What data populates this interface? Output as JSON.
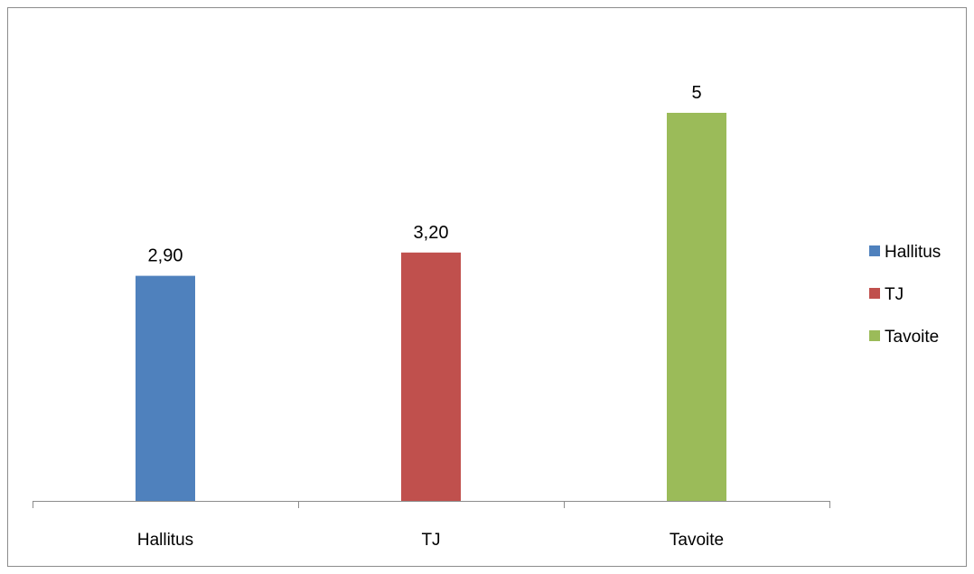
{
  "chart_data": {
    "type": "bar",
    "categories": [
      "Hallitus",
      "TJ",
      "Tavoite"
    ],
    "series": [
      {
        "name": "Hallitus",
        "values": [
          2.9,
          null,
          null
        ],
        "labels": [
          "2,90",
          "",
          ""
        ]
      },
      {
        "name": "TJ",
        "values": [
          null,
          3.2,
          null
        ],
        "labels": [
          "",
          "3,20",
          ""
        ]
      },
      {
        "name": "Tavoite",
        "values": [
          null,
          null,
          5
        ],
        "labels": [
          "",
          "",
          "5"
        ]
      }
    ],
    "title": "",
    "xlabel": "",
    "ylabel": "",
    "ylim": [
      0,
      6
    ],
    "grid": false,
    "legend_position": "right",
    "colors": [
      "#4F81BD",
      "#C0504D",
      "#9BBB59"
    ]
  }
}
